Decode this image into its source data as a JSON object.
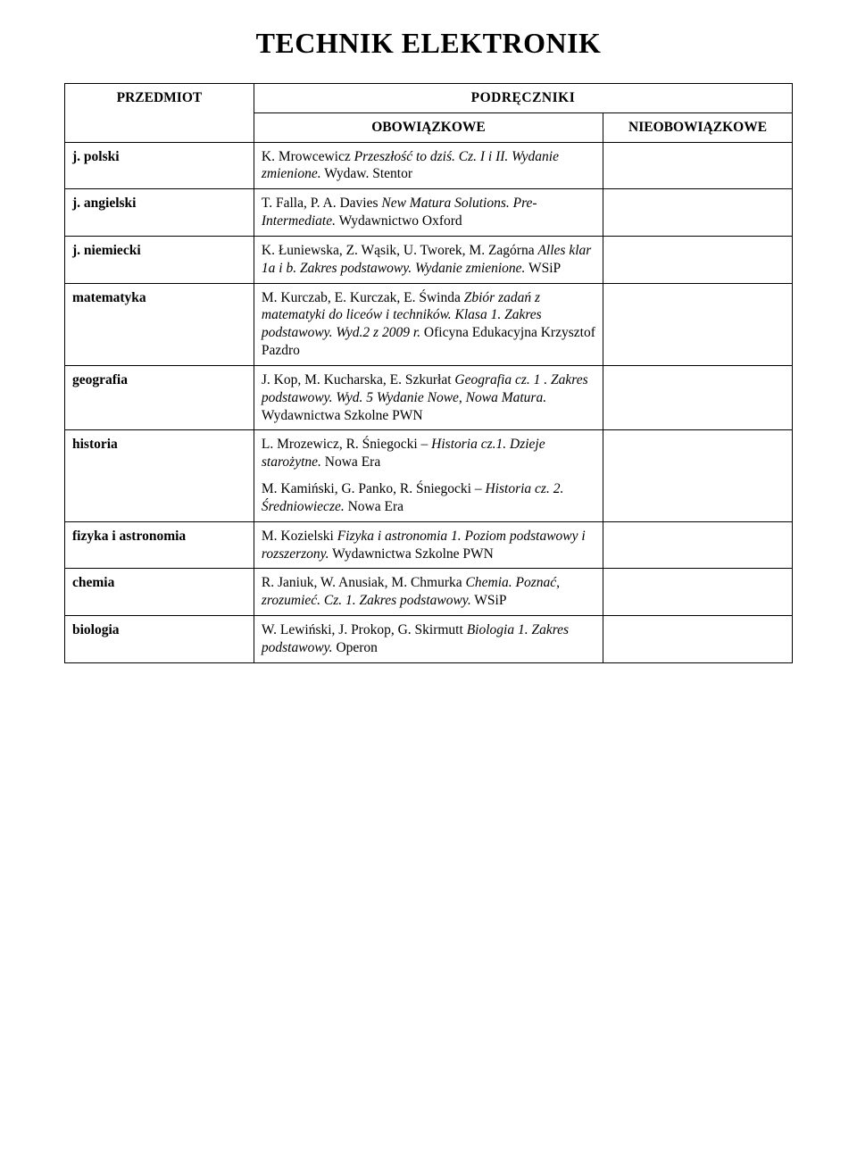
{
  "page_title": "TECHNIK ELEKTRONIK",
  "headers": {
    "subject": "PRZEDMIOT",
    "main": "PODRĘCZNIKI",
    "mandatory": "OBOWIĄZKOWE",
    "optional": "NIEOBOWIĄZKOWE"
  },
  "rows": [
    {
      "subject": "j. polski",
      "mandatory_lines": [
        {
          "pre": "K. Mrowcewicz ",
          "it": "Przeszłość to dziś. Cz. I i II. Wydanie zmienione.",
          "post": " Wydaw. Stentor"
        }
      ],
      "optional": ""
    },
    {
      "subject": "j. angielski",
      "mandatory_lines": [
        {
          "pre": "T. Falla, P. A. Davies ",
          "it": "New Matura Solutions. Pre-Intermediate.",
          "post": " Wydawnictwo Oxford"
        }
      ],
      "optional": ""
    },
    {
      "subject": "j. niemiecki",
      "mandatory_lines": [
        {
          "pre": "K. Łuniewska, Z. Wąsik, U. Tworek, M. Zagórna ",
          "it": "Alles klar 1a i b. Zakres podstawowy. Wydanie zmienione.",
          "post": " WSiP"
        }
      ],
      "optional": ""
    },
    {
      "subject": "matematyka",
      "mandatory_lines": [
        {
          "pre": "M. Kurczab, E. Kurczak, E. Świnda ",
          "it": "Zbiór zadań z matematyki do liceów i techników. Klasa 1. Zakres podstawowy. Wyd.2 z 2009 r.",
          "post": " Oficyna Edukacyjna Krzysztof Pazdro"
        }
      ],
      "optional": ""
    },
    {
      "subject": "geografia",
      "mandatory_lines": [
        {
          "pre": "J. Kop, M. Kucharska, E. Szkurłat ",
          "it": "Geografia cz. 1 . Zakres podstawowy. Wyd. 5 Wydanie Nowe, Nowa Matura.",
          "post": " Wydawnictwa Szkolne PWN"
        }
      ],
      "optional": ""
    },
    {
      "subject": "historia",
      "mandatory_lines": [
        {
          "pre": "L. Mrozewicz, R. Śniegocki – ",
          "it": "Historia cz.1. Dzieje starożytne.",
          "post": " Nowa Era"
        },
        {
          "pre": "M. Kamiński, G. Panko, R. Śniegocki – ",
          "it": "Historia cz. 2. Średniowiecze.",
          "post": " Nowa Era"
        }
      ],
      "optional": ""
    },
    {
      "subject": "fizyka i astronomia",
      "mandatory_lines": [
        {
          "pre": "M. Kozielski ",
          "it": "Fizyka i astronomia 1. Poziom podstawowy i rozszerzony.",
          "post": " Wydawnictwa Szkolne PWN"
        }
      ],
      "optional": ""
    },
    {
      "subject": "chemia",
      "mandatory_lines": [
        {
          "pre": "R. Janiuk, W. Anusiak, M. Chmurka ",
          "it": "Chemia. Poznać, zrozumieć. Cz. 1. Zakres podstawowy.",
          "post": " WSiP"
        }
      ],
      "optional": ""
    },
    {
      "subject": "biologia",
      "mandatory_lines": [
        {
          "pre": "W. Lewiński, J. Prokop, G. Skirmutt ",
          "it": "Biologia 1. Zakres podstawowy.",
          "post": " Operon"
        }
      ],
      "optional": ""
    }
  ]
}
